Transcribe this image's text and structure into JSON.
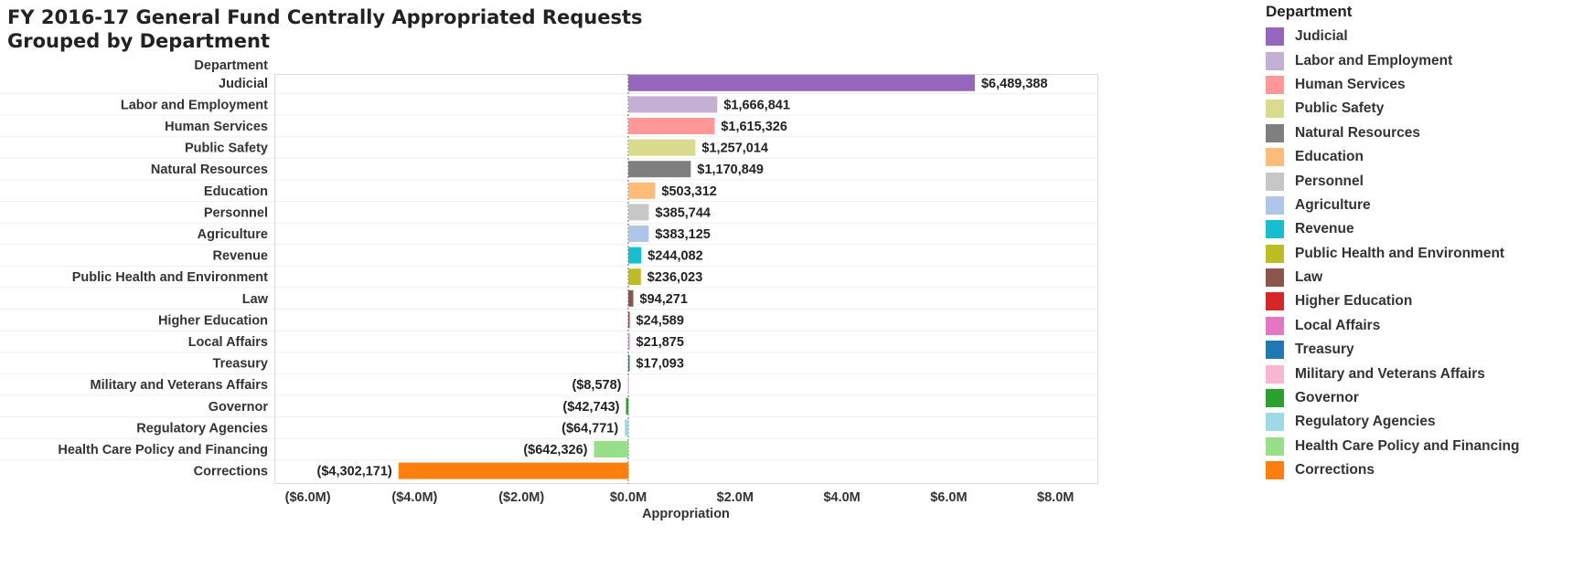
{
  "chart_data": {
    "type": "bar",
    "orientation": "horizontal",
    "title": [
      "FY 2016-17 General Fund Centrally Appropriated Requests",
      "Grouped by Department"
    ],
    "row_header": "Department",
    "xlabel": "Appropriation",
    "xlim": [
      -7000000,
      9000000
    ],
    "xticks": [
      -6000000,
      -4000000,
      -2000000,
      0,
      2000000,
      4000000,
      6000000,
      8000000
    ],
    "xtick_labels": [
      "($6.0M)",
      "($4.0M)",
      "($2.0M)",
      "$0.0M",
      "$2.0M",
      "$4.0M",
      "$6.0M",
      "$8.0M"
    ],
    "grid": false,
    "legend_position": "right",
    "legend_title": "Department",
    "categories": [
      "Judicial",
      "Labor and Employment",
      "Human Services",
      "Public Safety",
      "Natural Resources",
      "Education",
      "Personnel",
      "Agriculture",
      "Revenue",
      "Public Health and Environment",
      "Law",
      "Higher Education",
      "Local Affairs",
      "Treasury",
      "Military and Veterans Affairs",
      "Governor",
      "Regulatory Agencies",
      "Health Care Policy and Financing",
      "Corrections"
    ],
    "values": [
      6489388,
      1666841,
      1615326,
      1257014,
      1170849,
      503312,
      385744,
      383125,
      244082,
      236023,
      94271,
      24589,
      21875,
      17093,
      -8578,
      -42743,
      -64771,
      -642326,
      -4302171
    ],
    "data_labels": [
      "$6,489,388",
      "$1,666,841",
      "$1,615,326",
      "$1,257,014",
      "$1,170,849",
      "$503,312",
      "$385,744",
      "$383,125",
      "$244,082",
      "$236,023",
      "$94,271",
      "$24,589",
      "$21,875",
      "$17,093",
      "($8,578)",
      "($42,743)",
      "($64,771)",
      "($642,326)",
      "($4,302,171)"
    ],
    "colors": [
      "#9467bd",
      "#c5b0d5",
      "#ff9896",
      "#dbdb8d",
      "#7f7f7f",
      "#ffbb78",
      "#c7c7c7",
      "#aec7e8",
      "#17becf",
      "#bcbd22",
      "#8c564b",
      "#d62728",
      "#e377c2",
      "#1f77b4",
      "#f7b6d2",
      "#2ca02c",
      "#9edae5",
      "#98df8a",
      "#ff7f0e"
    ]
  }
}
